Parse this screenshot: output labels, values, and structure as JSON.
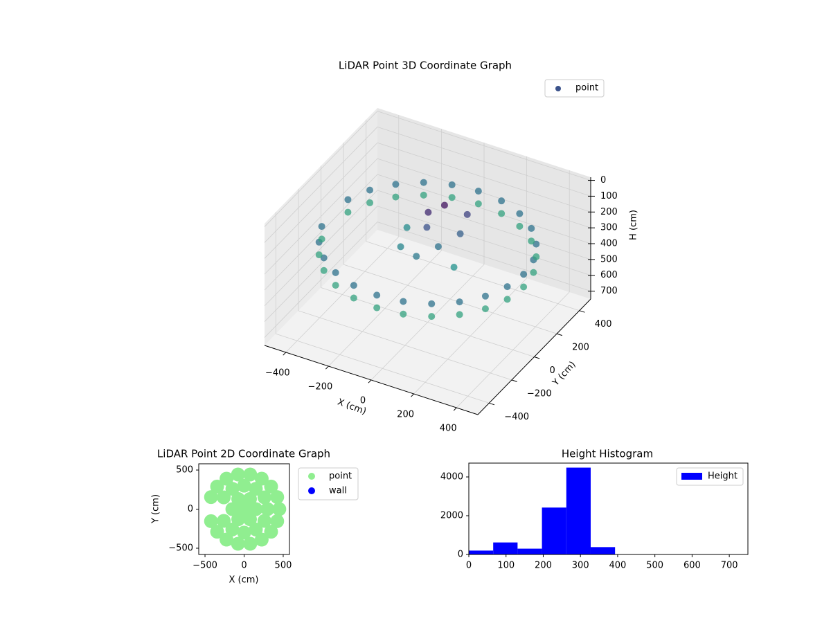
{
  "chart_data": [
    {
      "type": "scatter3d",
      "title": "LiDAR Point 3D Coordinate Graph",
      "xlabel": "X (cm)",
      "ylabel": "Y (cm)",
      "zlabel": "H (cm)",
      "legend": "upper right",
      "xlim": [
        -500,
        500
      ],
      "ylim": [
        -500,
        500
      ],
      "zlim": [
        750,
        -20
      ],
      "xticks": [
        {
          "value": -400,
          "label": "−400"
        },
        {
          "value": -200,
          "label": "−200"
        },
        0,
        200,
        400
      ],
      "yticks": [
        {
          "value": -400,
          "label": "−400"
        },
        {
          "value": -200,
          "label": "−200"
        },
        0,
        200,
        400
      ],
      "zticks": [
        0,
        100,
        200,
        300,
        400,
        500,
        600,
        700
      ],
      "grid": true,
      "cmap": [
        "#440154",
        "#3b528b",
        "#21918c",
        "#5ec962",
        "#fde725"
      ],
      "clim": [
        100,
        500
      ],
      "series": [
        {
          "name": "point",
          "color": "#3b528b",
          "x": [
            450,
            435,
            390,
            318,
            225,
            116,
            0,
            -116,
            -225,
            -318,
            -390,
            -435,
            -435,
            -390,
            -318,
            -225,
            -116,
            0,
            116,
            225,
            318,
            390,
            435,
            450,
            435,
            390,
            318,
            225,
            116,
            0,
            -116,
            -225,
            -318,
            -390,
            -435,
            -435,
            -390,
            -318,
            -225,
            -116,
            0,
            116,
            225,
            318,
            390,
            435,
            -50,
            0,
            -30,
            50,
            100,
            -100,
            0,
            150,
            -150,
            80
          ],
          "y": [
            0,
            116,
            225,
            318,
            390,
            435,
            450,
            435,
            390,
            318,
            225,
            116,
            -116,
            -225,
            -318,
            -390,
            -435,
            -450,
            -435,
            -390,
            -318,
            -225,
            -116,
            0,
            116,
            225,
            318,
            390,
            435,
            450,
            435,
            390,
            318,
            225,
            116,
            -116,
            -225,
            -318,
            -390,
            -435,
            -450,
            -435,
            -390,
            -318,
            -225,
            -116,
            100,
            150,
            50,
            0,
            100,
            -50,
            -100,
            -50,
            100,
            200
          ],
          "h": [
            250,
            250,
            250,
            250,
            250,
            250,
            250,
            250,
            250,
            250,
            250,
            250,
            250,
            250,
            250,
            250,
            250,
            250,
            250,
            250,
            250,
            250,
            250,
            330,
            330,
            330,
            330,
            330,
            330,
            330,
            330,
            330,
            330,
            330,
            330,
            330,
            330,
            330,
            330,
            330,
            330,
            330,
            330,
            330,
            330,
            330,
            150,
            120,
            200,
            250,
            220,
            280,
            260,
            300,
            290,
            180
          ]
        }
      ]
    },
    {
      "type": "scatter",
      "title": "LiDAR Point 2D Coordinate Graph",
      "xlabel": "X (cm)",
      "ylabel": "Y (cm)",
      "legend": "outside right",
      "xlim": [
        -580,
        580
      ],
      "ylim": [
        -580,
        580
      ],
      "xticks": [
        {
          "value": -500,
          "label": "−500"
        },
        0,
        500
      ],
      "yticks": [
        {
          "value": -500,
          "label": "−500"
        },
        0,
        500
      ],
      "series": [
        {
          "name": "point",
          "color": "#90ee90",
          "x": [
            450,
            423,
            345,
            225,
            78,
            -78,
            -225,
            -345,
            -423,
            -423,
            -345,
            -225,
            -78,
            78,
            225,
            345,
            423,
            300,
            260,
            150,
            0,
            -150,
            -260,
            -260,
            -150,
            0,
            150,
            260,
            150,
            75,
            -75,
            -150,
            -75,
            75,
            0
          ],
          "y": [
            0,
            154,
            289,
            390,
            443,
            443,
            390,
            289,
            154,
            -154,
            -289,
            -390,
            -443,
            -443,
            -390,
            -289,
            -154,
            0,
            150,
            260,
            300,
            260,
            150,
            -150,
            -260,
            -300,
            -260,
            -150,
            0,
            130,
            130,
            0,
            -130,
            -130,
            0
          ]
        },
        {
          "name": "wall",
          "color": "#0000ff",
          "x": [],
          "y": []
        }
      ]
    },
    {
      "type": "histogram",
      "title": "Height Histogram",
      "legend": "upper right",
      "bins": [
        0,
        65.5,
        131,
        196.5,
        262,
        327.5,
        393,
        458.5,
        524,
        589.5,
        655,
        720.5
      ],
      "series": [
        {
          "name": "Height",
          "color": "#0000ff",
          "values": [
            200,
            620,
            300,
            2420,
            4480,
            380,
            5,
            3,
            2,
            1,
            2
          ]
        }
      ],
      "xlim": [
        0,
        750
      ],
      "ylim": [
        0,
        4714
      ],
      "xticks": [
        0,
        100,
        200,
        300,
        400,
        500,
        600,
        700
      ],
      "yticks": [
        0,
        2000,
        4000
      ]
    }
  ]
}
